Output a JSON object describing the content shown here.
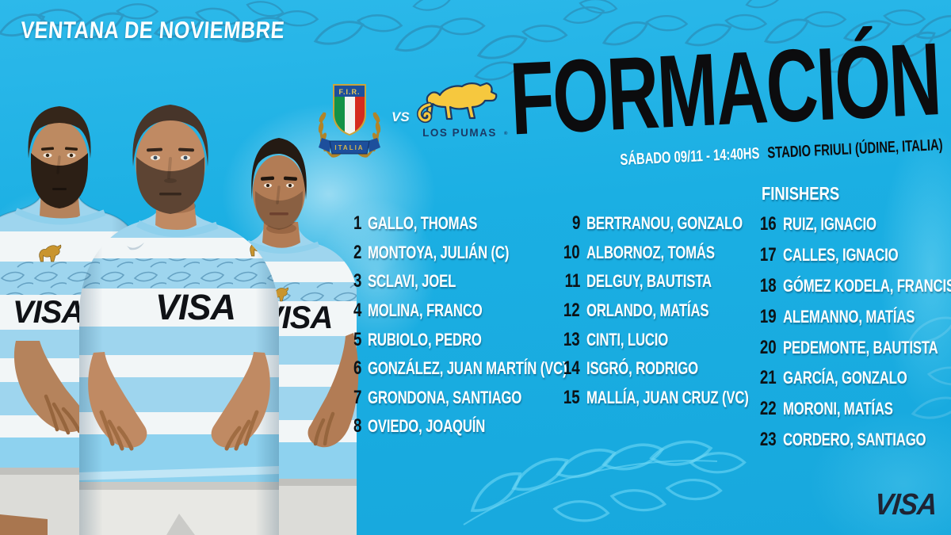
{
  "header": {
    "eyebrow": "VENTANA DE NOVIEMBRE",
    "title": "FORMACIÓN",
    "subtitle_date": "SÁBADO 09/11 - 14:40HS",
    "subtitle_venue": "STADIO FRIULI (ÚDINE, ITALIA)"
  },
  "matchup": {
    "home_abbr": "F.I.R.",
    "home_banner": "ITALIA",
    "vs_label": "VS",
    "away_name": "LOS PUMAS",
    "away_trademark": "®"
  },
  "lineup": {
    "starters": [
      {
        "num": "1",
        "name": "GALLO, THOMAS"
      },
      {
        "num": "2",
        "name": "MONTOYA, JULIÁN (C)"
      },
      {
        "num": "3",
        "name": "SCLAVI, JOEL"
      },
      {
        "num": "4",
        "name": "MOLINA, FRANCO"
      },
      {
        "num": "5",
        "name": "RUBIOLO, PEDRO"
      },
      {
        "num": "6",
        "name": "GONZÁLEZ, JUAN MARTÍN (VC)"
      },
      {
        "num": "7",
        "name": "GRONDONA, SANTIAGO"
      },
      {
        "num": "8",
        "name": "OVIEDO, JOAQUÍN"
      },
      {
        "num": "9",
        "name": "BERTRANOU, GONZALO"
      },
      {
        "num": "10",
        "name": "ALBORNOZ, TOMÁS"
      },
      {
        "num": "11",
        "name": "DELGUY, BAUTISTA"
      },
      {
        "num": "12",
        "name": "ORLANDO, MATÍAS"
      },
      {
        "num": "13",
        "name": "CINTI, LUCIO"
      },
      {
        "num": "14",
        "name": "ISGRÓ, RODRIGO"
      },
      {
        "num": "15",
        "name": "MALLÍA, JUAN CRUZ (VC)"
      }
    ],
    "finishers_title": "FINISHERS",
    "finishers": [
      {
        "num": "16",
        "name": "RUIZ, IGNACIO"
      },
      {
        "num": "17",
        "name": "CALLES, IGNACIO"
      },
      {
        "num": "18",
        "name": "GÓMEZ KODELA, FRANCISCO"
      },
      {
        "num": "19",
        "name": "ALEMANNO, MATÍAS"
      },
      {
        "num": "20",
        "name": "PEDEMONTE, BAUTISTA"
      },
      {
        "num": "21",
        "name": "GARCÍA, GONZALO"
      },
      {
        "num": "22",
        "name": "MORONI, MATÍAS"
      },
      {
        "num": "23",
        "name": "CORDERO, SANTIAGO"
      }
    ]
  },
  "jersey": {
    "sponsor": "VISA"
  },
  "footer": {
    "sponsor": "VISA"
  },
  "colors": {
    "background": "#1bafe3",
    "title": "#0c0c0e",
    "text_white": "#ffffff",
    "number_black": "#0c1216",
    "navy": "#1b3a66",
    "gold": "#f6c83e",
    "jersey_blue": "#9ed5ee",
    "visa_dark": "#1e2433"
  }
}
